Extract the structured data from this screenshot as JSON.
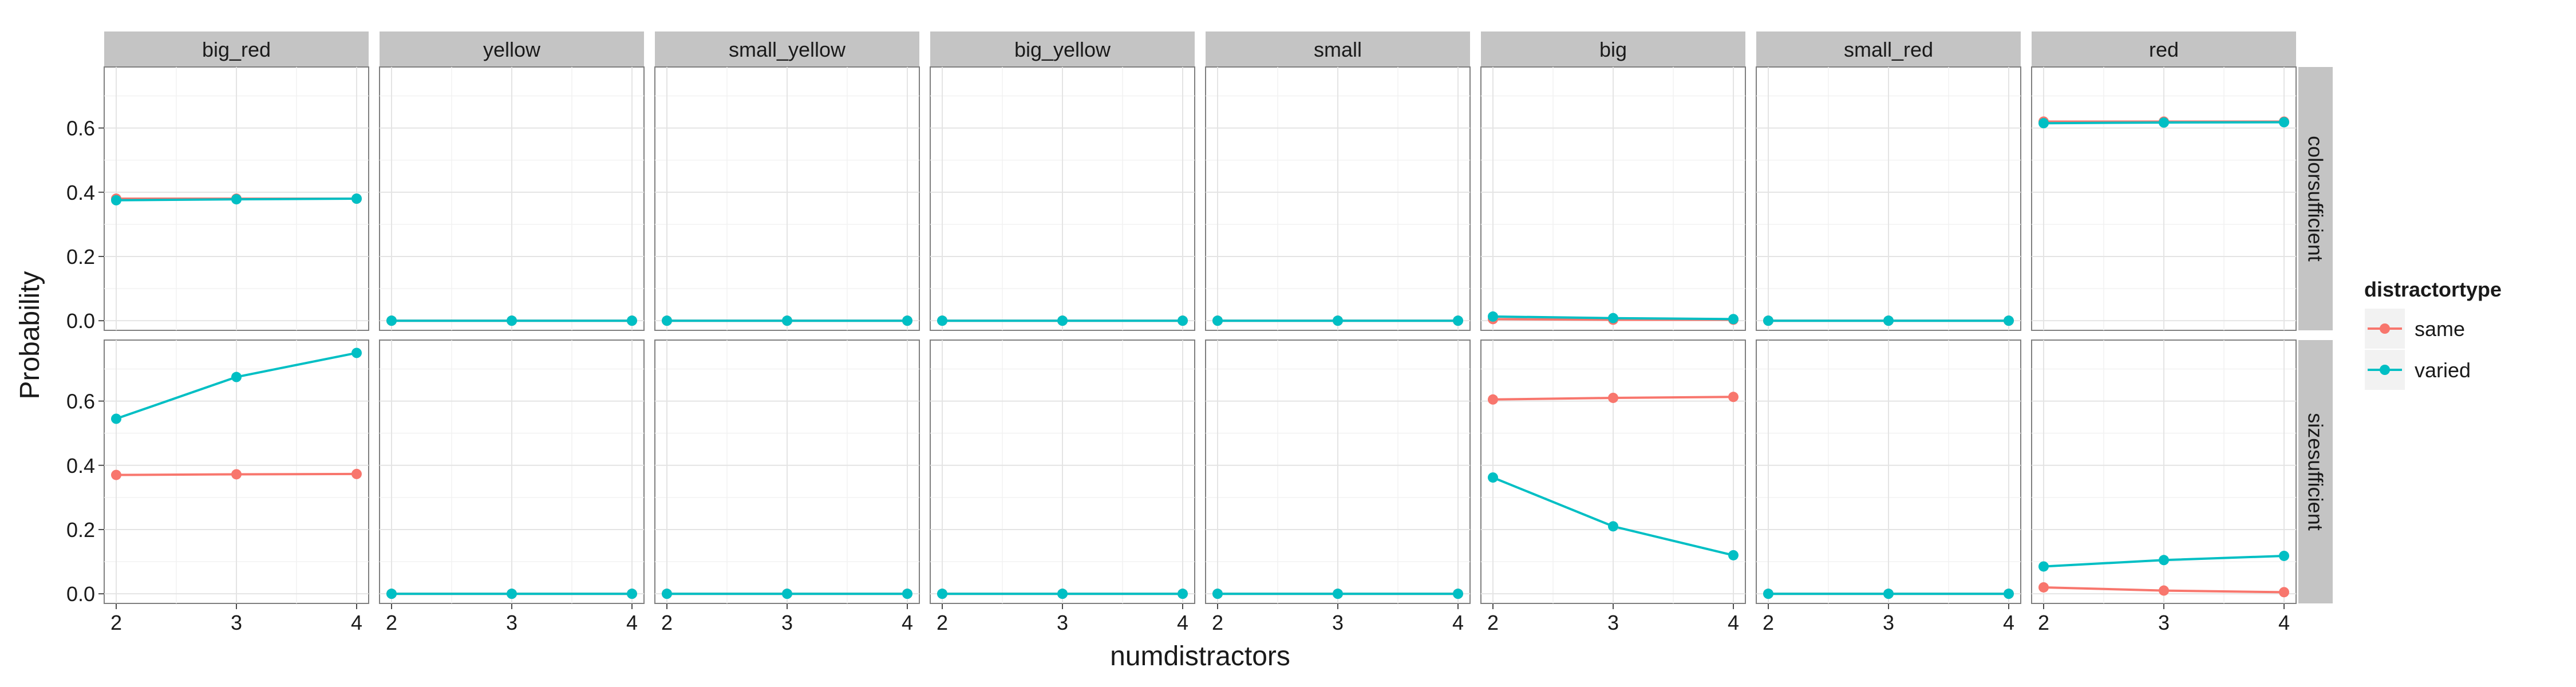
{
  "chart_data": {
    "type": "line",
    "facet_columns": [
      "big_red",
      "yellow",
      "small_yellow",
      "big_yellow",
      "small",
      "big",
      "small_red",
      "red"
    ],
    "facet_rows": [
      "colorsufficient",
      "sizesufficient"
    ],
    "x": [
      2,
      3,
      4
    ],
    "xlabel": "numdistractors",
    "ylabel": "Probability",
    "ylim": [
      -0.03,
      0.79
    ],
    "yticks": [
      0.0,
      0.2,
      0.4,
      0.6
    ],
    "ytick_labels": [
      "0.0",
      "0.2",
      "0.4",
      "0.6"
    ],
    "xtick_labels": [
      "2",
      "3",
      "4"
    ],
    "legend": {
      "title": "distractortype",
      "position": "right",
      "entries": [
        {
          "name": "same",
          "color": "#F8766D"
        },
        {
          "name": "varied",
          "color": "#00BFC4"
        }
      ]
    },
    "grid": true,
    "panels": [
      {
        "row": "colorsufficient",
        "column": "big_red",
        "series": [
          {
            "name": "same",
            "values": [
              0.38,
              0.38,
              0.38
            ]
          },
          {
            "name": "varied",
            "values": [
              0.375,
              0.378,
              0.38
            ]
          }
        ]
      },
      {
        "row": "colorsufficient",
        "column": "yellow",
        "series": [
          {
            "name": "same",
            "values": [
              0.0,
              0.0,
              0.0
            ]
          },
          {
            "name": "varied",
            "values": [
              0.0,
              0.0,
              0.0
            ]
          }
        ]
      },
      {
        "row": "colorsufficient",
        "column": "small_yellow",
        "series": [
          {
            "name": "same",
            "values": [
              0.0,
              0.0,
              0.0
            ]
          },
          {
            "name": "varied",
            "values": [
              0.0,
              0.0,
              0.0
            ]
          }
        ]
      },
      {
        "row": "colorsufficient",
        "column": "big_yellow",
        "series": [
          {
            "name": "same",
            "values": [
              0.0,
              0.0,
              0.0
            ]
          },
          {
            "name": "varied",
            "values": [
              0.0,
              0.0,
              0.0
            ]
          }
        ]
      },
      {
        "row": "colorsufficient",
        "column": "small",
        "series": [
          {
            "name": "same",
            "values": [
              0.0,
              0.0,
              0.0
            ]
          },
          {
            "name": "varied",
            "values": [
              0.0,
              0.0,
              0.0
            ]
          }
        ]
      },
      {
        "row": "colorsufficient",
        "column": "big",
        "series": [
          {
            "name": "same",
            "values": [
              0.005,
              0.003,
              0.003
            ]
          },
          {
            "name": "varied",
            "values": [
              0.013,
              0.008,
              0.005
            ]
          }
        ]
      },
      {
        "row": "colorsufficient",
        "column": "small_red",
        "series": [
          {
            "name": "same",
            "values": [
              0.0,
              0.0,
              0.0
            ]
          },
          {
            "name": "varied",
            "values": [
              0.0,
              0.0,
              0.0
            ]
          }
        ]
      },
      {
        "row": "colorsufficient",
        "column": "red",
        "series": [
          {
            "name": "same",
            "values": [
              0.62,
              0.62,
              0.62
            ]
          },
          {
            "name": "varied",
            "values": [
              0.615,
              0.617,
              0.618
            ]
          }
        ]
      },
      {
        "row": "sizesufficient",
        "column": "big_red",
        "series": [
          {
            "name": "same",
            "values": [
              0.37,
              0.372,
              0.373
            ]
          },
          {
            "name": "varied",
            "values": [
              0.545,
              0.675,
              0.75
            ]
          }
        ]
      },
      {
        "row": "sizesufficient",
        "column": "yellow",
        "series": [
          {
            "name": "same",
            "values": [
              0.0,
              0.0,
              0.0
            ]
          },
          {
            "name": "varied",
            "values": [
              0.0,
              0.0,
              0.0
            ]
          }
        ]
      },
      {
        "row": "sizesufficient",
        "column": "small_yellow",
        "series": [
          {
            "name": "same",
            "values": [
              0.0,
              0.0,
              0.0
            ]
          },
          {
            "name": "varied",
            "values": [
              0.0,
              0.0,
              0.0
            ]
          }
        ]
      },
      {
        "row": "sizesufficient",
        "column": "big_yellow",
        "series": [
          {
            "name": "same",
            "values": [
              0.0,
              0.0,
              0.0
            ]
          },
          {
            "name": "varied",
            "values": [
              0.0,
              0.0,
              0.0
            ]
          }
        ]
      },
      {
        "row": "sizesufficient",
        "column": "small",
        "series": [
          {
            "name": "same",
            "values": [
              0.0,
              0.0,
              0.0
            ]
          },
          {
            "name": "varied",
            "values": [
              0.0,
              0.0,
              0.0
            ]
          }
        ]
      },
      {
        "row": "sizesufficient",
        "column": "big",
        "series": [
          {
            "name": "same",
            "values": [
              0.605,
              0.61,
              0.613
            ]
          },
          {
            "name": "varied",
            "values": [
              0.362,
              0.21,
              0.12
            ]
          }
        ]
      },
      {
        "row": "sizesufficient",
        "column": "small_red",
        "series": [
          {
            "name": "same",
            "values": [
              0.0,
              0.0,
              0.0
            ]
          },
          {
            "name": "varied",
            "values": [
              0.0,
              0.0,
              0.0
            ]
          }
        ]
      },
      {
        "row": "sizesufficient",
        "column": "red",
        "series": [
          {
            "name": "same",
            "values": [
              0.02,
              0.01,
              0.005
            ]
          },
          {
            "name": "varied",
            "values": [
              0.085,
              0.105,
              0.118
            ]
          }
        ]
      }
    ]
  }
}
